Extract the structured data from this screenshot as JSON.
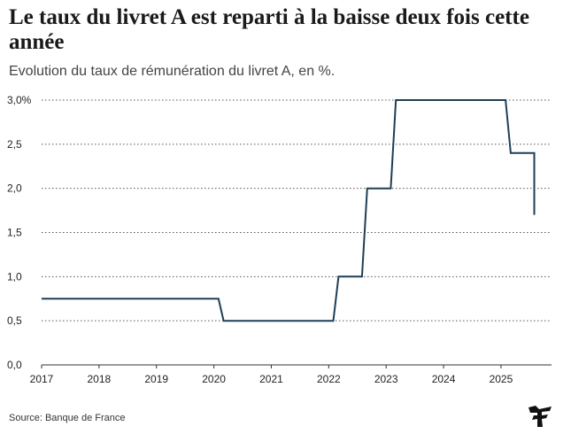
{
  "header": {
    "title": "Le taux du livret A est reparti à la baisse deux fois cette année",
    "subtitle": "Evolution du taux de rémunération du livret A, en %."
  },
  "footer": {
    "source": "Source: Banque de France",
    "logo_icon": "le-figaro-logo-icon"
  },
  "colors": {
    "line": "#1f3e55",
    "grid": "#555555",
    "text": "#222222"
  },
  "chart_data": {
    "type": "line",
    "step": true,
    "x_axis": {
      "min": 2017.0,
      "max": 2025.88,
      "ticks": [
        2017,
        2018,
        2019,
        2020,
        2021,
        2022,
        2023,
        2024,
        2025
      ],
      "tick_labels": [
        "2017",
        "2018",
        "2019",
        "2020",
        "2021",
        "2022",
        "2023",
        "2024",
        "2025"
      ]
    },
    "y_axis": {
      "min": 0,
      "max": 3.0,
      "ticks": [
        0,
        0.5,
        1.0,
        1.5,
        2.0,
        2.5,
        3.0
      ],
      "tick_labels": [
        "0,0",
        "0,5",
        "1,0",
        "1,5",
        "2,0",
        "2,5",
        "3,0%"
      ]
    },
    "grid": "horizontal-dotted",
    "series": [
      {
        "points": [
          [
            2017.0,
            0.75
          ],
          [
            2020.08,
            0.75
          ],
          [
            2020.17,
            0.5
          ],
          [
            2022.08,
            0.5
          ],
          [
            2022.17,
            1.0
          ],
          [
            2022.58,
            1.0
          ],
          [
            2022.67,
            2.0
          ],
          [
            2023.08,
            2.0
          ],
          [
            2023.17,
            3.0
          ],
          [
            2025.08,
            3.0
          ],
          [
            2025.17,
            2.4
          ],
          [
            2025.58,
            2.4
          ],
          [
            2025.58,
            1.7
          ]
        ]
      }
    ]
  }
}
